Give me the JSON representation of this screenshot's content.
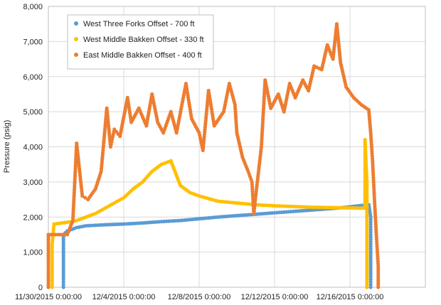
{
  "chart_data": {
    "type": "scatter",
    "ylabel": "Pressure (psig)",
    "ylim": [
      0,
      8000
    ],
    "yticks": [
      0,
      1000,
      2000,
      3000,
      4000,
      5000,
      6000,
      7000,
      8000
    ],
    "ytick_labels": [
      "0",
      "1,000",
      "2,000",
      "3,000",
      "4,000",
      "5,000",
      "6,000",
      "7,000",
      "8,000"
    ],
    "xlim_days": [
      0,
      20
    ],
    "xticks_days": [
      0,
      4,
      8,
      12,
      16,
      20
    ],
    "xtick_labels": [
      "11/30/2015  0:00:00",
      "12/4/2015  0:00:00",
      "12/8/2015  0:00:00",
      "12/12/2015  0:00:00",
      "12/16/2015  0:00:00",
      ""
    ],
    "grid": true,
    "legend_position": "top-left",
    "series": [
      {
        "name": "West Three Forks Offset - 700 ft",
        "color": "#5b9bd5",
        "points": [
          [
            0.8,
            0
          ],
          [
            0.8,
            300
          ],
          [
            0.8,
            700
          ],
          [
            0.8,
            1100
          ],
          [
            0.8,
            1500
          ],
          [
            1.0,
            1600
          ],
          [
            1.5,
            1700
          ],
          [
            2,
            1750
          ],
          [
            3,
            1780
          ],
          [
            4,
            1800
          ],
          [
            5,
            1830
          ],
          [
            6,
            1870
          ],
          [
            7,
            1900
          ],
          [
            8,
            1950
          ],
          [
            9,
            2000
          ],
          [
            10,
            2040
          ],
          [
            11,
            2080
          ],
          [
            12,
            2120
          ],
          [
            13,
            2160
          ],
          [
            14,
            2200
          ],
          [
            15,
            2240
          ],
          [
            16,
            2290
          ],
          [
            16.6,
            2330
          ],
          [
            17,
            2350
          ],
          [
            17.1,
            2000
          ],
          [
            17.1,
            1500
          ],
          [
            17.1,
            900
          ],
          [
            17.1,
            300
          ],
          [
            17.1,
            0
          ]
        ]
      },
      {
        "name": "West Middle Bakken Offset - 330 ft",
        "color": "#ffc000",
        "points": [
          [
            0.2,
            0
          ],
          [
            0.2,
            400
          ],
          [
            0.2,
            800
          ],
          [
            0.2,
            1200
          ],
          [
            0.3,
            1800
          ],
          [
            1,
            1850
          ],
          [
            1.5,
            1900
          ],
          [
            2,
            2000
          ],
          [
            2.5,
            2100
          ],
          [
            3,
            2250
          ],
          [
            3.5,
            2400
          ],
          [
            4,
            2550
          ],
          [
            4.5,
            2800
          ],
          [
            5,
            3000
          ],
          [
            5.5,
            3300
          ],
          [
            6,
            3500
          ],
          [
            6.5,
            3600
          ],
          [
            7,
            2900
          ],
          [
            7.5,
            2700
          ],
          [
            8,
            2600
          ],
          [
            9,
            2450
          ],
          [
            10,
            2400
          ],
          [
            11,
            2350
          ],
          [
            12,
            2320
          ],
          [
            13,
            2300
          ],
          [
            14,
            2280
          ],
          [
            15,
            2270
          ],
          [
            16,
            2260
          ],
          [
            16.8,
            2250
          ],
          [
            16.8,
            3300
          ],
          [
            16.8,
            4200
          ],
          [
            16.9,
            3000
          ],
          [
            16.9,
            1800
          ],
          [
            16.9,
            800
          ],
          [
            16.9,
            0
          ]
        ]
      },
      {
        "name": "East Middle Bakken Offset - 400 ft",
        "color": "#ed7d31",
        "points": [
          [
            0,
            0
          ],
          [
            0,
            400
          ],
          [
            0,
            900
          ],
          [
            0,
            1500
          ],
          [
            1,
            1500
          ],
          [
            1.3,
            1900
          ],
          [
            1.5,
            4100
          ],
          [
            1.8,
            2600
          ],
          [
            2.1,
            2500
          ],
          [
            2.5,
            2800
          ],
          [
            2.8,
            3300
          ],
          [
            3.1,
            5100
          ],
          [
            3.3,
            4000
          ],
          [
            3.5,
            4500
          ],
          [
            3.8,
            4300
          ],
          [
            4.2,
            5400
          ],
          [
            4.4,
            4700
          ],
          [
            4.8,
            5100
          ],
          [
            5.2,
            4600
          ],
          [
            5.5,
            5500
          ],
          [
            5.8,
            4700
          ],
          [
            6.1,
            4400
          ],
          [
            6.5,
            5000
          ],
          [
            6.8,
            4400
          ],
          [
            7.3,
            5800
          ],
          [
            7.6,
            4800
          ],
          [
            8.0,
            4400
          ],
          [
            8.2,
            3900
          ],
          [
            8.5,
            5600
          ],
          [
            8.8,
            4600
          ],
          [
            9.3,
            5000
          ],
          [
            9.6,
            5800
          ],
          [
            9.9,
            5200
          ],
          [
            10.0,
            4400
          ],
          [
            10.3,
            3700
          ],
          [
            10.6,
            3300
          ],
          [
            10.8,
            3000
          ],
          [
            10.9,
            2100
          ],
          [
            11.0,
            2600
          ],
          [
            11.3,
            4000
          ],
          [
            11.5,
            5900
          ],
          [
            11.8,
            5100
          ],
          [
            12.2,
            5500
          ],
          [
            12.5,
            5000
          ],
          [
            12.8,
            5800
          ],
          [
            13.1,
            5400
          ],
          [
            13.5,
            5900
          ],
          [
            13.8,
            5600
          ],
          [
            14.1,
            6300
          ],
          [
            14.5,
            6200
          ],
          [
            14.8,
            6900
          ],
          [
            15.1,
            6500
          ],
          [
            15.3,
            7500
          ],
          [
            15.5,
            6400
          ],
          [
            15.8,
            5700
          ],
          [
            16.2,
            5400
          ],
          [
            16.6,
            5200
          ],
          [
            17.0,
            5050
          ],
          [
            17.1,
            4400
          ],
          [
            17.2,
            3600
          ],
          [
            17.3,
            2500
          ],
          [
            17.4,
            1500
          ],
          [
            17.5,
            600
          ],
          [
            17.5,
            0
          ]
        ]
      }
    ]
  }
}
